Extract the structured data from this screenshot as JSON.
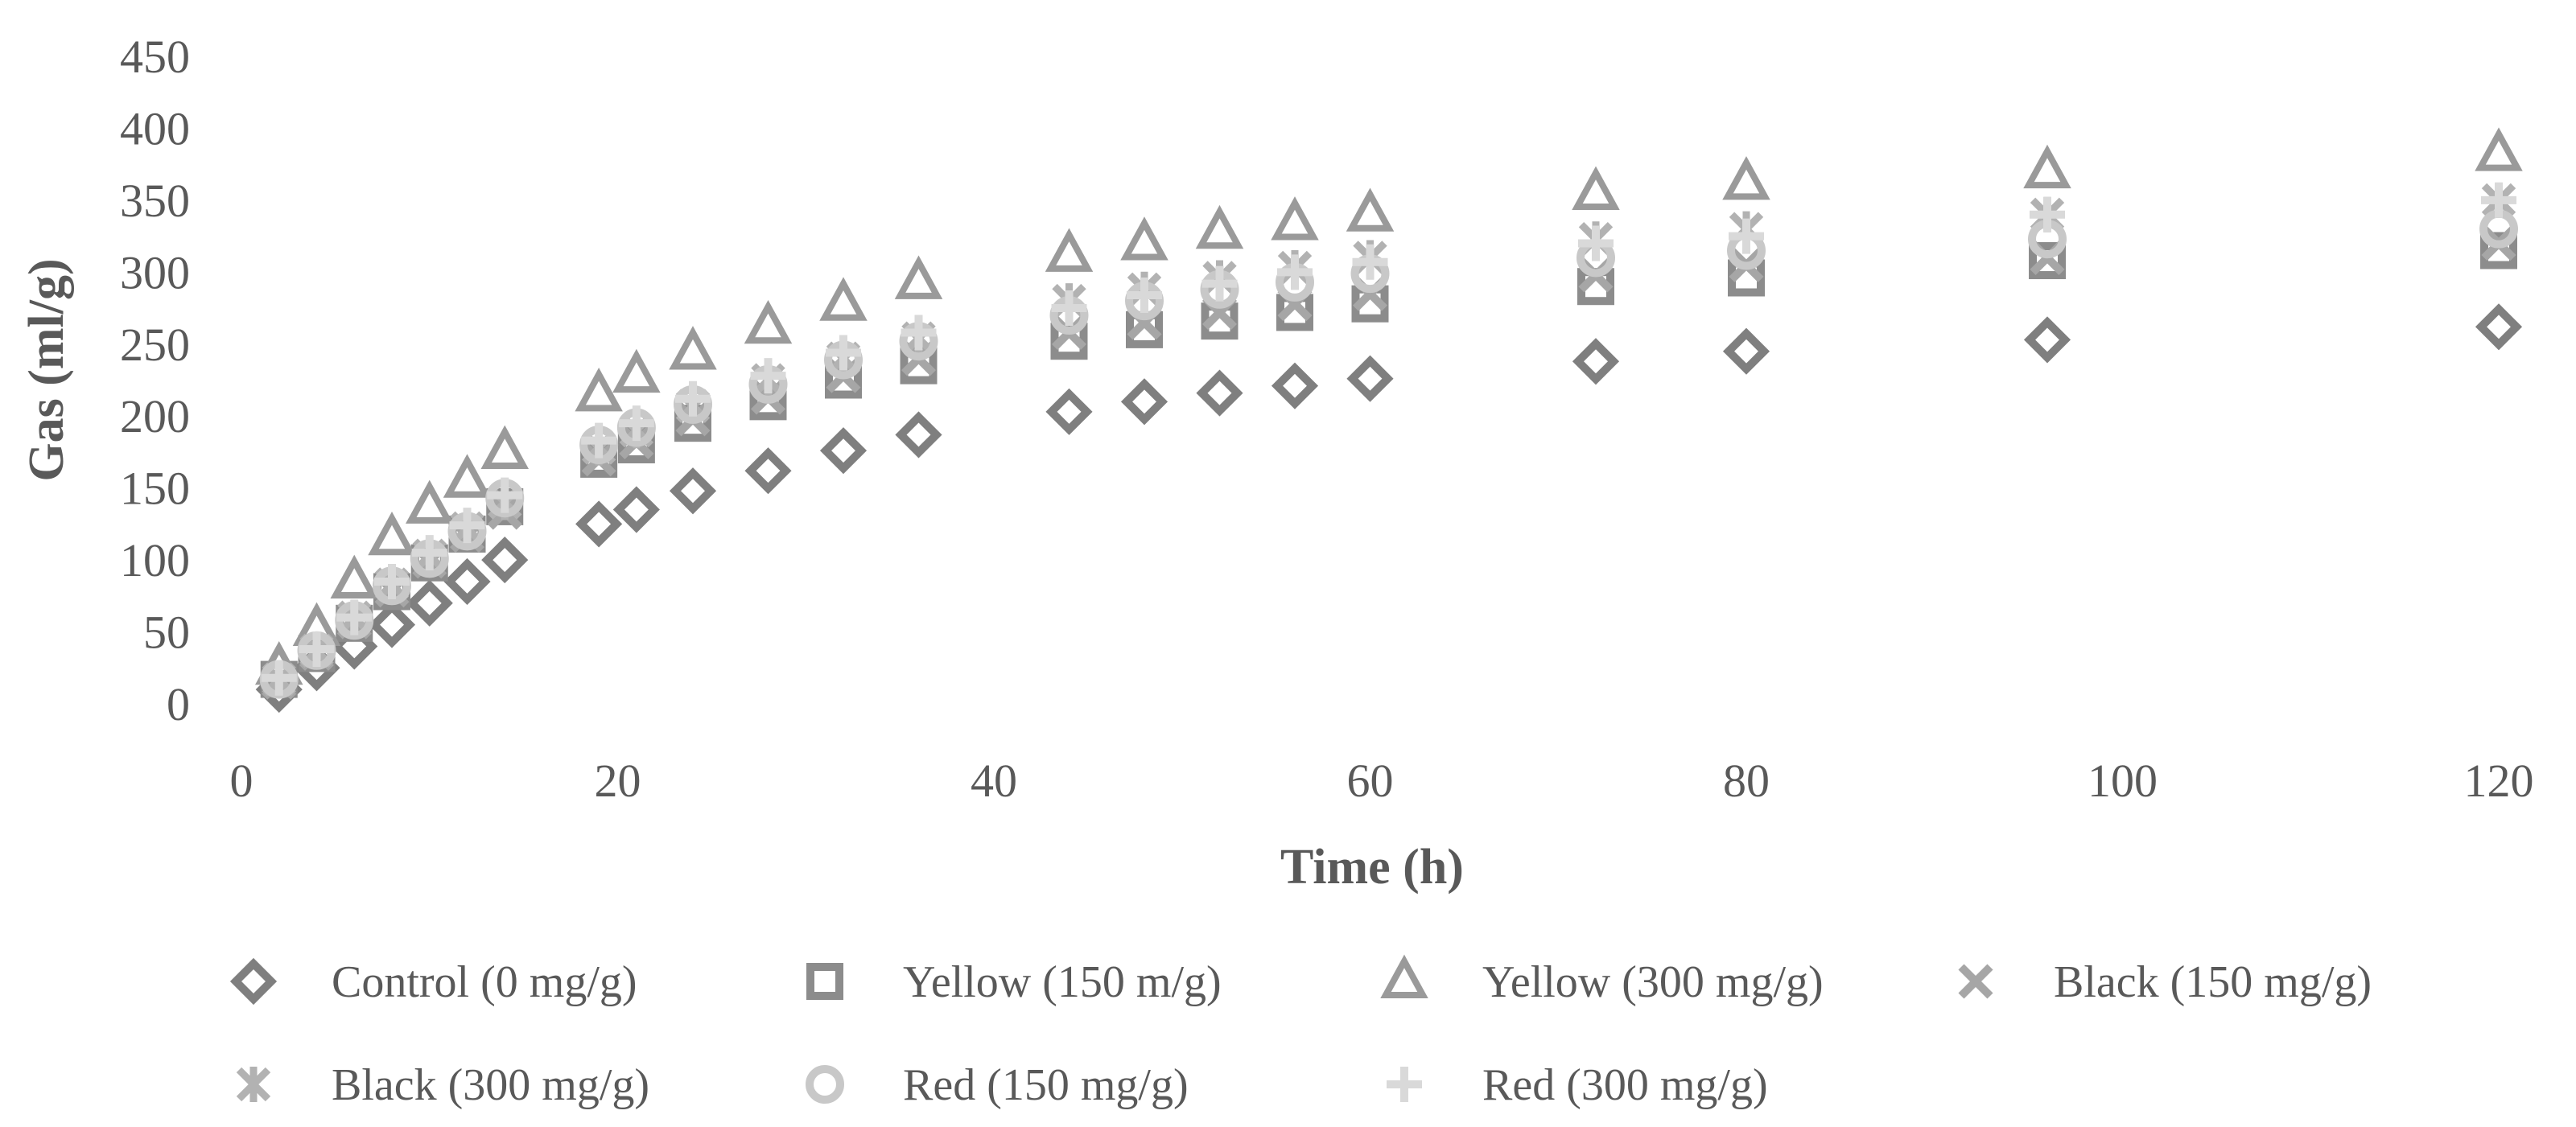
{
  "chart_data": {
    "type": "scatter",
    "title": "",
    "xlabel": "Time (h)",
    "ylabel": "Gas (ml/g)",
    "xlim": [
      0,
      120
    ],
    "ylim": [
      0,
      450
    ],
    "xticks": [
      0,
      20,
      40,
      60,
      80,
      100,
      120
    ],
    "yticks": [
      0,
      50,
      100,
      150,
      200,
      250,
      300,
      350,
      400,
      450
    ],
    "grid": false,
    "legend_position": "bottom",
    "x": [
      2,
      4,
      6,
      8,
      10,
      12,
      14,
      19,
      21,
      24,
      28,
      32,
      36,
      44,
      48,
      52,
      56,
      60,
      72,
      80,
      96,
      120
    ],
    "series": [
      {
        "name": "Control (0 mg/g)",
        "marker": "diamond",
        "color": "#7f7f7f",
        "values": [
          10,
          25,
          40,
          55,
          70,
          85,
          100,
          125,
          135,
          148,
          162,
          176,
          187,
          203,
          210,
          216,
          221,
          226,
          238,
          245,
          253,
          262
        ]
      },
      {
        "name": "Yellow (150 m/g)",
        "marker": "square",
        "color": "#8c8c8c",
        "values": [
          17,
          35,
          56,
          78,
          98,
          118,
          137,
          170,
          180,
          195,
          210,
          225,
          235,
          252,
          260,
          266,
          272,
          278,
          290,
          296,
          308,
          315
        ]
      },
      {
        "name": "Yellow (300 mg/g)",
        "marker": "triangle",
        "color": "#9a9a9a",
        "values": [
          25,
          52,
          85,
          115,
          137,
          155,
          175,
          215,
          228,
          244,
          262,
          278,
          293,
          312,
          320,
          328,
          334,
          340,
          355,
          362,
          370,
          382
        ]
      },
      {
        "name": "Black (150 mg/g)",
        "marker": "x",
        "color": "#a6a6a6",
        "values": [
          15,
          35,
          57,
          79,
          99,
          117,
          133,
          170,
          182,
          198,
          213,
          228,
          240,
          258,
          265,
          272,
          278,
          285,
          298,
          305,
          310,
          320
        ]
      },
      {
        "name": "Black (300 mg/g)",
        "marker": "star",
        "color": "#b2b2b2",
        "values": [
          17,
          37,
          60,
          83,
          103,
          122,
          140,
          178,
          190,
          207,
          225,
          240,
          254,
          280,
          288,
          296,
          303,
          310,
          323,
          330,
          340,
          350
        ]
      },
      {
        "name": "Red (150 mg/g)",
        "marker": "circle",
        "color": "#c8c8c8",
        "values": [
          17,
          37,
          58,
          82,
          101,
          120,
          143,
          180,
          192,
          208,
          222,
          239,
          252,
          270,
          280,
          288,
          293,
          299,
          310,
          315,
          323,
          330
        ]
      },
      {
        "name": "Red (300 mg/g)",
        "marker": "plus",
        "color": "#d9d9d9",
        "values": [
          18,
          38,
          60,
          85,
          105,
          124,
          145,
          183,
          195,
          212,
          228,
          244,
          258,
          275,
          284,
          292,
          300,
          307,
          320,
          325,
          340,
          350
        ]
      }
    ]
  }
}
